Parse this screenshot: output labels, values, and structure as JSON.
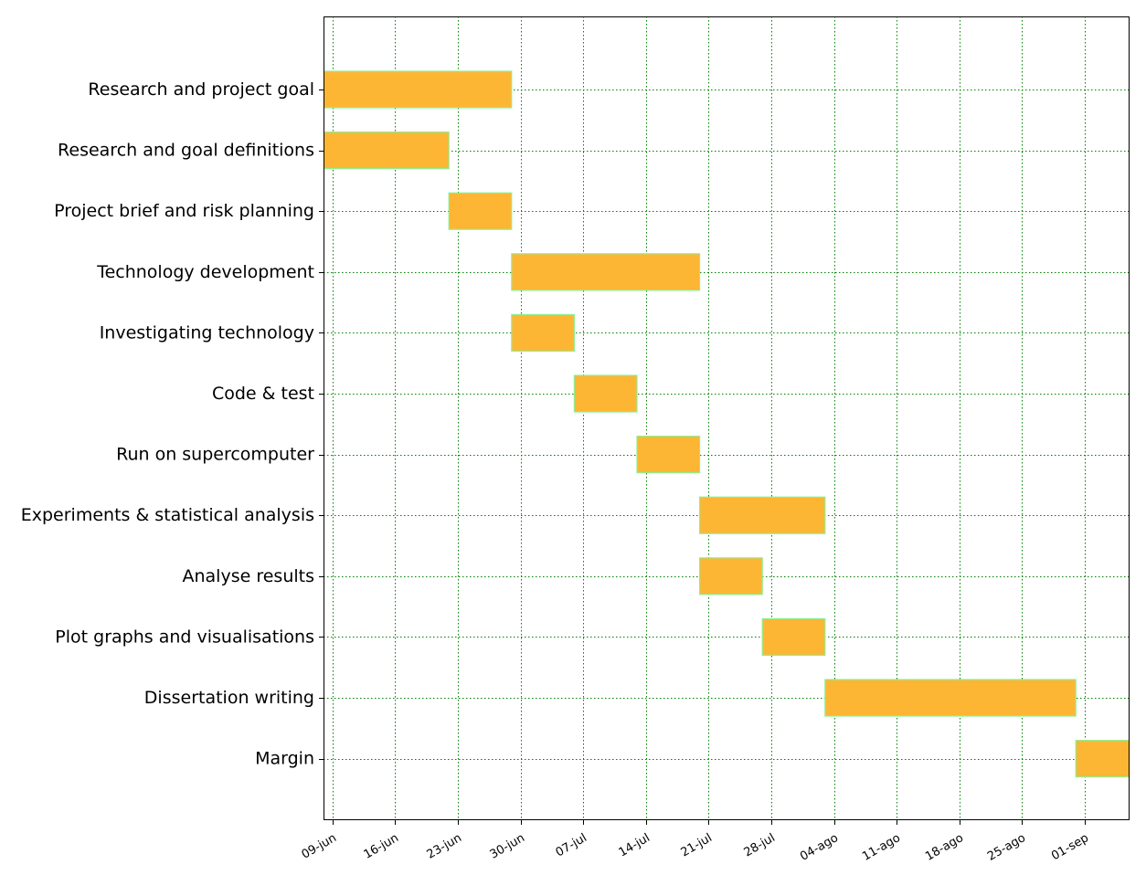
{
  "chart_data": {
    "type": "gantt",
    "title": "",
    "xlabel": "",
    "ylabel": "",
    "xlim": [
      "2018-06-08",
      "2018-09-06"
    ],
    "grid": true,
    "legend": "none",
    "colors": {
      "bar_fill": "#fdb634",
      "bar_edge": "#90ee90",
      "grid": "#008000"
    },
    "tasks": [
      {
        "name": "Research and project goal",
        "start": "2018-06-08",
        "end": "2018-06-29"
      },
      {
        "name": "Research and goal definitions",
        "start": "2018-06-08",
        "end": "2018-06-22"
      },
      {
        "name": "Project brief and risk planning",
        "start": "2018-06-22",
        "end": "2018-06-29"
      },
      {
        "name": "Technology development",
        "start": "2018-06-29",
        "end": "2018-07-20"
      },
      {
        "name": "Investigating technology",
        "start": "2018-06-29",
        "end": "2018-07-06"
      },
      {
        "name": "Code & test",
        "start": "2018-07-06",
        "end": "2018-07-13"
      },
      {
        "name": "Run on supercomputer",
        "start": "2018-07-13",
        "end": "2018-07-20"
      },
      {
        "name": "Experiments & statistical analysis",
        "start": "2018-07-20",
        "end": "2018-08-03"
      },
      {
        "name": "Analyse results",
        "start": "2018-07-20",
        "end": "2018-07-27"
      },
      {
        "name": "Plot graphs and visualisations",
        "start": "2018-07-27",
        "end": "2018-08-03"
      },
      {
        "name": "Dissertation writing",
        "start": "2018-08-03",
        "end": "2018-08-31"
      },
      {
        "name": "Margin",
        "start": "2018-08-31",
        "end": "2018-09-07"
      }
    ],
    "ticks": [
      {
        "date": "2018-06-09",
        "label": "09-jun"
      },
      {
        "date": "2018-06-16",
        "label": "16-jun"
      },
      {
        "date": "2018-06-23",
        "label": "23-jun"
      },
      {
        "date": "2018-06-30",
        "label": "30-jun"
      },
      {
        "date": "2018-07-07",
        "label": "07-jul"
      },
      {
        "date": "2018-07-14",
        "label": "14-jul"
      },
      {
        "date": "2018-07-21",
        "label": "21-jul"
      },
      {
        "date": "2018-07-28",
        "label": "28-jul"
      },
      {
        "date": "2018-08-04",
        "label": "04-ago"
      },
      {
        "date": "2018-08-11",
        "label": "11-ago"
      },
      {
        "date": "2018-08-18",
        "label": "18-ago"
      },
      {
        "date": "2018-08-25",
        "label": "25-ago"
      },
      {
        "date": "2018-09-01",
        "label": "01-sep"
      }
    ]
  }
}
